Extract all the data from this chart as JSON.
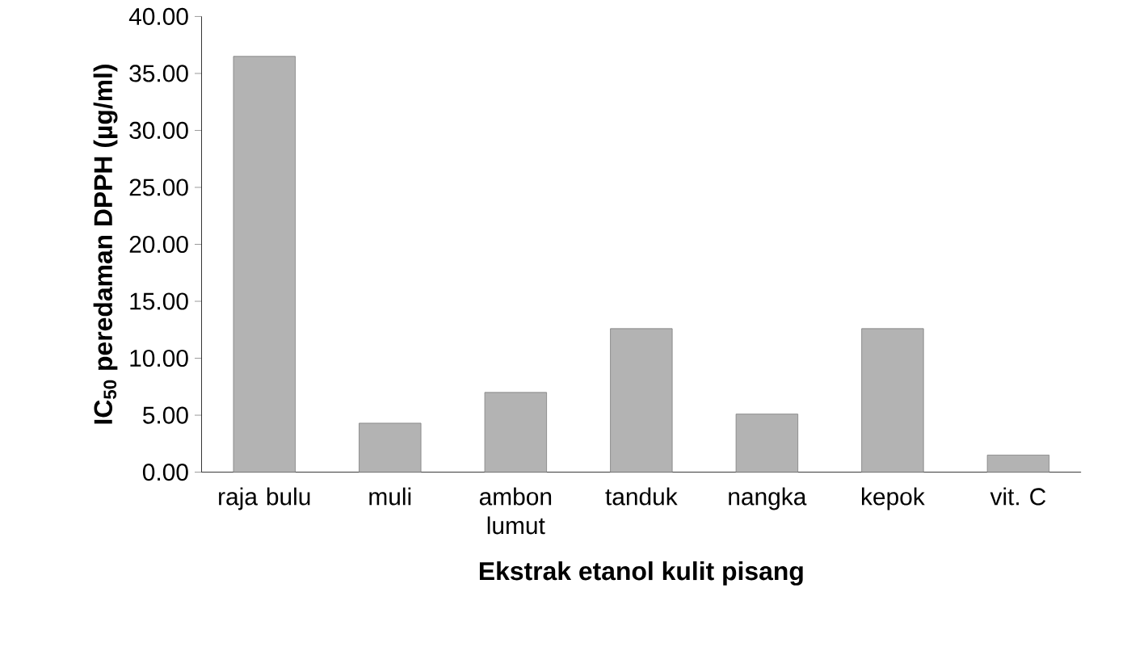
{
  "chart_data": {
    "type": "bar",
    "xlabel": "Ekstrak etanol kulit pisang",
    "ylabel": "IC$_{50}$ peredaman DPPH (µg/ml)",
    "categories": [
      "raja bulu",
      "muli",
      "ambon lumut",
      "tanduk",
      "nangka",
      "kepok",
      "vit. C"
    ],
    "values": [
      36.5,
      4.3,
      7.0,
      12.6,
      5.1,
      12.6,
      1.5
    ],
    "color": "#b3b3b3",
    "ylim": [
      0,
      40
    ],
    "yticks": [
      {
        "value": 0,
        "label": "0.00"
      },
      {
        "value": 5,
        "label": "5.00"
      },
      {
        "value": 10,
        "label": "10.00"
      },
      {
        "value": 15,
        "label": "15.00"
      },
      {
        "value": 20,
        "label": "20.00"
      },
      {
        "value": 25,
        "label": "25.00"
      },
      {
        "value": 30,
        "label": "30.00"
      },
      {
        "value": 35,
        "label": "35.00"
      },
      {
        "value": 40,
        "label": "40.00"
      }
    ],
    "grid": false
  }
}
